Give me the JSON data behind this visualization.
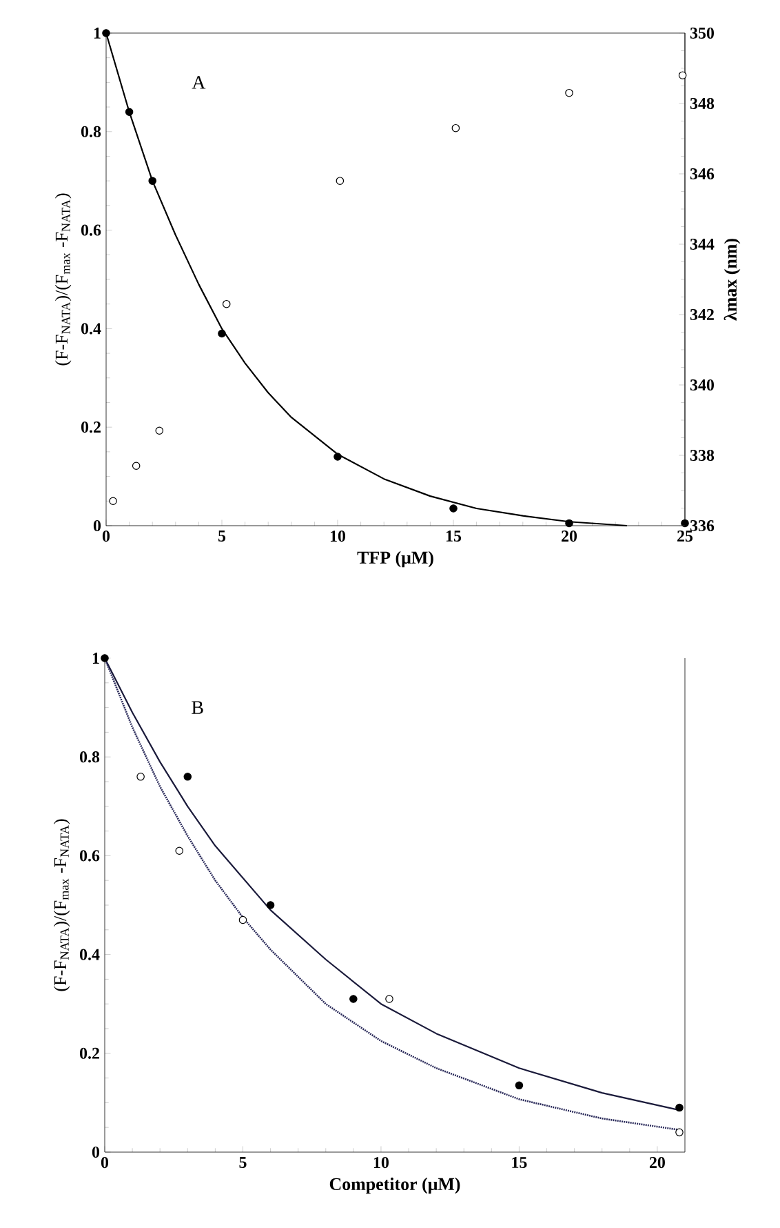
{
  "chart_data": [
    {
      "type": "scatter",
      "xlabel": "TFP (μM)",
      "ylabel": "(F-F$_{NATA}$)/(F$_{max}$ -F$_{NATA}$)",
      "y2label": "λmax (nm)",
      "annotations": [
        "A"
      ],
      "xlim": [
        0,
        25
      ],
      "ylim": [
        0,
        1
      ],
      "y2lim": [
        336,
        350
      ],
      "xticks": [
        0,
        5,
        10,
        15,
        20,
        25
      ],
      "yticks": [
        0,
        0.2,
        0.4,
        0.6,
        0.8,
        1
      ],
      "y2ticks": [
        336,
        338,
        340,
        342,
        344,
        346,
        348,
        350
      ],
      "marker": "circle",
      "series": [
        {
          "type": "line",
          "marker": "none",
          "line_style": "solid",
          "color": "#000000",
          "x": [
            0,
            1,
            2,
            3,
            4,
            5,
            6,
            7,
            8,
            10,
            12,
            14,
            16,
            18,
            20,
            22.5
          ],
          "values": [
            1,
            0.84,
            0.7,
            0.59,
            0.49,
            0.4,
            0.33,
            0.27,
            0.22,
            0.145,
            0.095,
            0.06,
            0.035,
            0.02,
            0.008,
            0
          ]
        },
        {
          "color": "#000000",
          "x": [
            0,
            1,
            2,
            5,
            10,
            15,
            20,
            25
          ],
          "values": [
            1,
            0.84,
            0.7,
            0.39,
            0.14,
            0.035,
            0.005,
            0.005
          ]
        },
        {
          "color": "#ffffff",
          "axis": "y2",
          "x": [
            0.3,
            1.3,
            2.3,
            5.2,
            10.1,
            15.1,
            20,
            24.9
          ],
          "values": [
            336.7,
            337.7,
            338.7,
            342.3,
            345.8,
            347.3,
            348.3,
            348.8
          ]
        }
      ]
    },
    {
      "type": "scatter",
      "xlabel": "Competitor (μM)",
      "ylabel": "(F-F$_{NATA}$)/(F$_{max}$ -F$_{NATA}$)",
      "annotations": [
        "B"
      ],
      "xlim": [
        0,
        21
      ],
      "ylim": [
        0,
        1
      ],
      "xticks": [
        0,
        5,
        10,
        15,
        20
      ],
      "yticks": [
        0,
        0.2,
        0.4,
        0.6,
        0.8,
        1
      ],
      "marker": "circle",
      "series": [
        {
          "type": "line",
          "marker": "none",
          "line_style": "solid",
          "color": "#1a1a3a",
          "x": [
            0,
            1,
            2,
            3,
            4,
            6,
            8,
            10,
            12,
            15,
            18,
            20.8
          ],
          "values": [
            1,
            0.89,
            0.79,
            0.7,
            0.62,
            0.49,
            0.39,
            0.3,
            0.24,
            0.17,
            0.12,
            0.085
          ]
        },
        {
          "type": "line",
          "marker": "none",
          "line_style": "dotted",
          "color": "#2a2a5a",
          "x": [
            0,
            1,
            2,
            3,
            4,
            5,
            6,
            8,
            10,
            12,
            15,
            18,
            20.8
          ],
          "values": [
            1,
            0.86,
            0.74,
            0.64,
            0.55,
            0.475,
            0.41,
            0.3,
            0.225,
            0.17,
            0.107,
            0.068,
            0.045
          ]
        },
        {
          "color": "#000000",
          "x": [
            0,
            3,
            6,
            9,
            15,
            20.8
          ],
          "values": [
            1,
            0.76,
            0.5,
            0.31,
            0.135,
            0.09
          ]
        },
        {
          "color": "#ffffff",
          "x": [
            1.3,
            2.7,
            5,
            10.3,
            20.8
          ],
          "values": [
            0.76,
            0.61,
            0.47,
            0.31,
            0.04
          ]
        }
      ]
    }
  ]
}
